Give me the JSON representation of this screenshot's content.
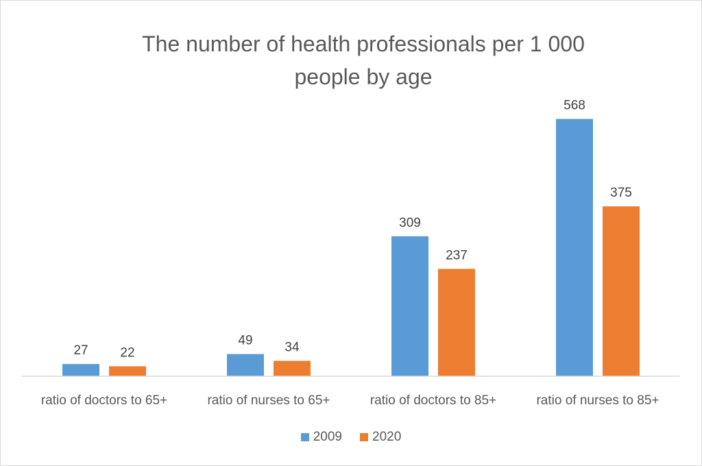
{
  "chart_data": {
    "type": "bar",
    "title_lines": [
      "The number of health professionals per 1 000",
      "people by age"
    ],
    "categories": [
      "ratio of doctors to 65+",
      "ratio of nurses to 65+",
      "ratio of doctors to 85+",
      "ratio of nurses to 85+"
    ],
    "series": [
      {
        "name": "2009",
        "values": [
          27,
          49,
          309,
          568
        ],
        "color": "#5b9bd5"
      },
      {
        "name": "2020",
        "values": [
          22,
          34,
          237,
          375
        ],
        "color": "#ed7d31"
      }
    ],
    "ylim": [
      0,
      600
    ],
    "grid": false,
    "data_labels": true,
    "legend_position": "bottom"
  }
}
